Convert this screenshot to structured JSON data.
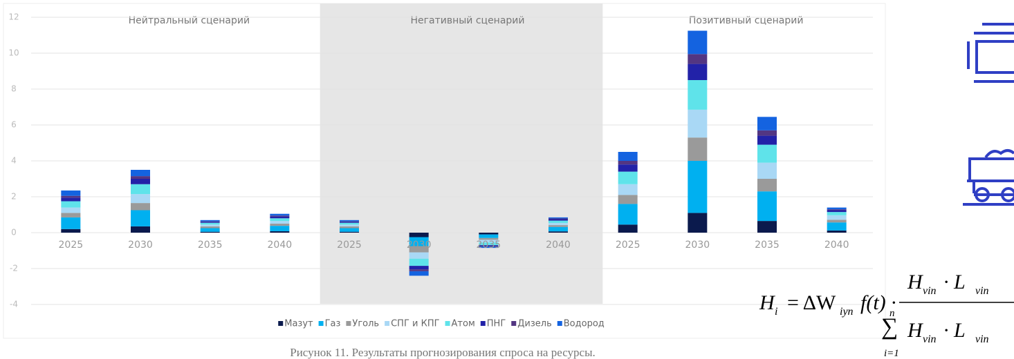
{
  "chart_data": {
    "type": "stacked_bar",
    "scenarios": [
      "Нейтральный сценарий",
      "Негативный сценарий",
      "Позитивный сценарий"
    ],
    "categories": [
      "2025",
      "2030",
      "2035",
      "2040",
      "2025",
      "2030",
      "2035",
      "2040",
      "2025",
      "2030",
      "2035",
      "2040"
    ],
    "series": [
      {
        "name": "Мазут",
        "color": "#0b1a4d",
        "values": [
          0.2,
          0.35,
          0.05,
          0.08,
          0.05,
          -0.25,
          -0.1,
          0.07,
          0.45,
          1.1,
          0.65,
          0.12
        ]
      },
      {
        "name": "Газ",
        "color": "#00b0f0",
        "values": [
          0.65,
          0.9,
          0.2,
          0.3,
          0.2,
          -0.5,
          -0.2,
          0.25,
          1.15,
          2.9,
          1.65,
          0.45
        ]
      },
      {
        "name": "Уголь",
        "color": "#9a9a9a",
        "values": [
          0.25,
          0.4,
          0.1,
          0.12,
          0.1,
          -0.35,
          -0.1,
          0.1,
          0.5,
          1.3,
          0.7,
          0.15
        ]
      },
      {
        "name": "СПГ и КПГ",
        "color": "#a9d8f5",
        "values": [
          0.3,
          0.5,
          0.1,
          0.15,
          0.1,
          -0.35,
          -0.15,
          0.12,
          0.6,
          1.55,
          0.9,
          0.25
        ]
      },
      {
        "name": "Атом",
        "color": "#5fe3ea",
        "values": [
          0.35,
          0.55,
          0.1,
          0.15,
          0.1,
          -0.4,
          -0.15,
          0.13,
          0.7,
          1.65,
          1.0,
          0.18
        ]
      },
      {
        "name": "ПНГ",
        "color": "#2222a8",
        "values": [
          0.2,
          0.3,
          0.05,
          0.1,
          0.05,
          -0.2,
          -0.05,
          0.08,
          0.4,
          0.9,
          0.5,
          0.1
        ]
      },
      {
        "name": "Дизель",
        "color": "#533682",
        "values": [
          0.1,
          0.15,
          0.03,
          0.05,
          0.03,
          -0.1,
          -0.03,
          0.04,
          0.2,
          0.55,
          0.3,
          0.05
        ]
      },
      {
        "name": "Водород",
        "color": "#1463e0",
        "values": [
          0.3,
          0.35,
          0.07,
          0.1,
          0.07,
          -0.25,
          -0.07,
          0.06,
          0.5,
          1.3,
          0.75,
          0.1
        ]
      }
    ],
    "ylim": [
      -4,
      12
    ],
    "yticks": [
      -4,
      -2,
      0,
      2,
      4,
      6,
      8,
      10,
      12
    ],
    "grid": true,
    "legend": "bottom"
  },
  "caption": "Рисунок 11. Результаты прогнозирования спроса на ресурсы.",
  "formula": {
    "lhs": "H",
    "lhs_sub": "i",
    "eq": "= ΔW",
    "eq_sub": "iyn",
    "mid": "f(t) ·",
    "num_1": "H",
    "num_1_sub": "vin",
    "num_2": "· L",
    "num_2_sub": "vin",
    "sum": "∑",
    "sum_top": "n",
    "sum_bottom": "i=1",
    "den_1": "H",
    "den_1_sub": "vin",
    "den_2": "· L",
    "den_2_sub": "vin"
  }
}
